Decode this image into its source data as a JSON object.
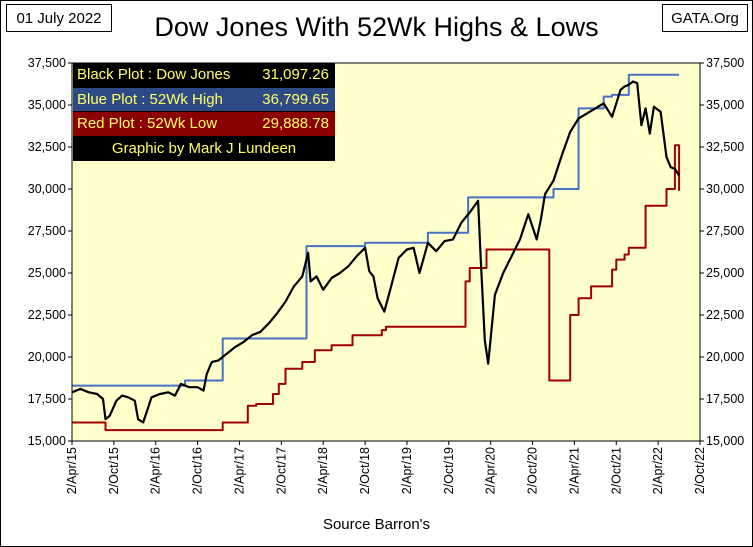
{
  "header": {
    "date": "01 July 2022",
    "title": "Dow Jones With 52Wk Highs & Lows",
    "source": "GATA.Org"
  },
  "legend": {
    "black": {
      "label": "Black Plot : Dow Jones",
      "value": "31,097.26"
    },
    "blue": {
      "label": "Blue Plot  :  52Wk High",
      "value": "36,799.65"
    },
    "red": {
      "label": "Red Plot   :  52Wk Low",
      "value": "29,888.78"
    },
    "credit": "Graphic by Mark J Lundeen"
  },
  "chart_data": {
    "type": "line",
    "title": "Dow Jones With 52Wk Highs & Lows",
    "xlabel": "Source Barron's",
    "ylabel": "",
    "ylim": [
      15000,
      37500
    ],
    "xlim": [
      2015.25,
      2022.75
    ],
    "y_ticks": [
      15000,
      17500,
      20000,
      22500,
      25000,
      27500,
      30000,
      32500,
      35000,
      37500
    ],
    "y_tick_labels": [
      "15,000",
      "17,500",
      "20,000",
      "22,500",
      "25,000",
      "27,500",
      "30,000",
      "32,500",
      "35,000",
      "37,500"
    ],
    "x_ticks": [
      2015.25,
      2015.75,
      2016.25,
      2016.75,
      2017.25,
      2017.75,
      2018.25,
      2018.75,
      2019.25,
      2019.75,
      2020.25,
      2020.75,
      2021.25,
      2021.75,
      2022.25,
      2022.75
    ],
    "x_tick_labels": [
      "2/Apr/15",
      "2/Oct/15",
      "2/Apr/16",
      "2/Oct/16",
      "2/Apr/17",
      "2/Oct/17",
      "2/Apr/18",
      "2/Oct/18",
      "2/Apr/19",
      "2/Oct/19",
      "2/Apr/20",
      "2/Oct/20",
      "2/Apr/21",
      "2/Oct/21",
      "2/Apr/22",
      "2/Oct/22"
    ],
    "grid": false,
    "legend_position": "top-left",
    "colors": {
      "dow": "#000000",
      "high": "#4472c4",
      "low": "#a00000",
      "plot_bg": "#ffffcc"
    },
    "series": [
      {
        "name": "Dow Jones",
        "color": "#000000",
        "step": false,
        "x": [
          2015.25,
          2015.35,
          2015.45,
          2015.55,
          2015.62,
          2015.65,
          2015.7,
          2015.78,
          2015.85,
          2015.92,
          2016.0,
          2016.04,
          2016.1,
          2016.2,
          2016.3,
          2016.4,
          2016.48,
          2016.55,
          2016.65,
          2016.75,
          2016.82,
          2016.86,
          2016.92,
          2017.0,
          2017.1,
          2017.2,
          2017.3,
          2017.4,
          2017.5,
          2017.6,
          2017.7,
          2017.8,
          2017.9,
          2018.0,
          2018.07,
          2018.1,
          2018.17,
          2018.25,
          2018.35,
          2018.45,
          2018.55,
          2018.65,
          2018.75,
          2018.8,
          2018.85,
          2018.9,
          2018.98,
          2019.05,
          2019.15,
          2019.25,
          2019.33,
          2019.4,
          2019.5,
          2019.6,
          2019.7,
          2019.8,
          2019.9,
          2020.0,
          2020.1,
          2020.13,
          2020.18,
          2020.22,
          2020.3,
          2020.4,
          2020.5,
          2020.6,
          2020.7,
          2020.8,
          2020.85,
          2020.9,
          2021.0,
          2021.1,
          2021.2,
          2021.3,
          2021.4,
          2021.5,
          2021.6,
          2021.7,
          2021.8,
          2021.85,
          2021.9,
          2021.95,
          2022.0,
          2022.05,
          2022.1,
          2022.15,
          2022.2,
          2022.28,
          2022.35,
          2022.4,
          2022.45,
          2022.5
        ],
        "values": [
          17900,
          18100,
          17900,
          17800,
          17500,
          16300,
          16500,
          17400,
          17700,
          17600,
          17400,
          16300,
          16100,
          17600,
          17800,
          17900,
          17700,
          18400,
          18200,
          18200,
          18000,
          19000,
          19700,
          19800,
          20200,
          20600,
          20900,
          21300,
          21500,
          22000,
          22600,
          23300,
          24200,
          24800,
          26200,
          24500,
          24800,
          24000,
          24700,
          25000,
          25400,
          26000,
          26500,
          25100,
          24800,
          23500,
          22700,
          24000,
          25900,
          26400,
          26500,
          25000,
          26800,
          26300,
          26900,
          27000,
          28000,
          28600,
          29300,
          26000,
          21000,
          19600,
          23700,
          25000,
          26000,
          27000,
          28500,
          27000,
          28200,
          29700,
          30500,
          32000,
          33400,
          34200,
          34500,
          34800,
          35100,
          34300,
          35900,
          36100,
          36200,
          36400,
          36300,
          33800,
          34800,
          33300,
          34900,
          34600,
          31900,
          31300,
          31200,
          30800
        ]
      },
      {
        "name": "52Wk High",
        "color": "#4472c4",
        "step": true,
        "x": [
          2015.25,
          2016.5,
          2016.6,
          2017.05,
          2017.05,
          2017.7,
          2018.05,
          2018.75,
          2019.25,
          2019.5,
          2019.98,
          2020.98,
          2021.0,
          2021.3,
          2021.6,
          2021.7,
          2021.9,
          2022.5
        ],
        "values": [
          18300,
          18300,
          18600,
          18700,
          21100,
          21100,
          26600,
          26800,
          26800,
          27400,
          29500,
          29500,
          30000,
          34800,
          35500,
          35600,
          36799.65,
          36799.65
        ]
      },
      {
        "name": "52Wk Low",
        "color": "#a00000",
        "step": true,
        "x": [
          2015.25,
          2015.65,
          2016.85,
          2017.05,
          2017.35,
          2017.45,
          2017.65,
          2017.72,
          2017.8,
          2018.0,
          2018.15,
          2018.35,
          2018.6,
          2018.95,
          2019.0,
          2019.8,
          2019.95,
          2020.0,
          2020.2,
          2020.95,
          2021.0,
          2021.2,
          2021.3,
          2021.45,
          2021.7,
          2021.75,
          2021.85,
          2021.9,
          2022.1,
          2022.35,
          2022.45,
          2022.5
        ],
        "values": [
          16100,
          15650,
          15650,
          16100,
          17100,
          17200,
          17800,
          18400,
          19300,
          19700,
          20400,
          20700,
          21300,
          21600,
          21800,
          21800,
          24500,
          25300,
          26400,
          18600,
          18600,
          22500,
          23500,
          24200,
          25200,
          25800,
          26100,
          26500,
          29000,
          30000,
          32600,
          29888.78
        ]
      }
    ]
  }
}
